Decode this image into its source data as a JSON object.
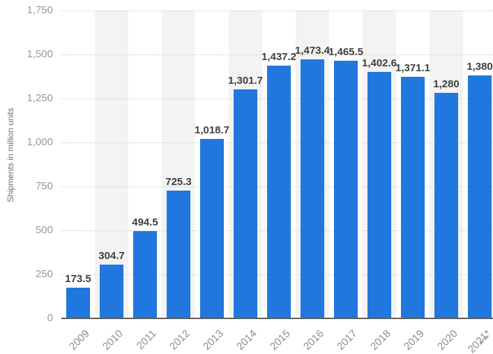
{
  "chart_data": {
    "type": "bar",
    "title": "",
    "xlabel": "",
    "ylabel": "Shipments in million units",
    "categories": [
      "2009",
      "2010",
      "2011",
      "2012",
      "2013",
      "2014",
      "2015",
      "2016",
      "2017",
      "2018",
      "2019",
      "2020",
      "2021*"
    ],
    "values": [
      173.5,
      304.7,
      494.5,
      725.3,
      1018.7,
      1301.7,
      1437.2,
      1473.4,
      1465.5,
      1402.6,
      1371.1,
      1280,
      1380
    ],
    "value_labels": [
      "173.5",
      "304.7",
      "494.5",
      "725.3",
      "1,018.7",
      "1,301.7",
      "1,437.2",
      "1,473.4",
      "1,465.5",
      "1,402.6",
      "1,371.1",
      "1,280",
      "1,380"
    ],
    "ylim": [
      0,
      1750
    ],
    "yticks": [
      0,
      250,
      500,
      750,
      1000,
      1250,
      1500,
      1750
    ],
    "ytick_labels": [
      "0",
      "250",
      "500",
      "750",
      "1,000",
      "1,250",
      "1,500",
      "1,750"
    ],
    "grid": "horizontal-dotted",
    "legend": "none",
    "plot_bands": "alternating-column-shading"
  },
  "colors": {
    "bar": "#2077dd",
    "band": "#f3f3f3",
    "gridline": "#cccccc",
    "axis_line": "#5f5f5f",
    "y_tick_text": "#999999",
    "x_tick_text": "#8c8c8c",
    "value_label_text": "#404040",
    "axis_title_text": "#6e6e6e",
    "background": "#ffffff"
  },
  "decorations": {
    "corner_artifact": "partial cut-off rotated character stroke at bottom-right edge"
  }
}
